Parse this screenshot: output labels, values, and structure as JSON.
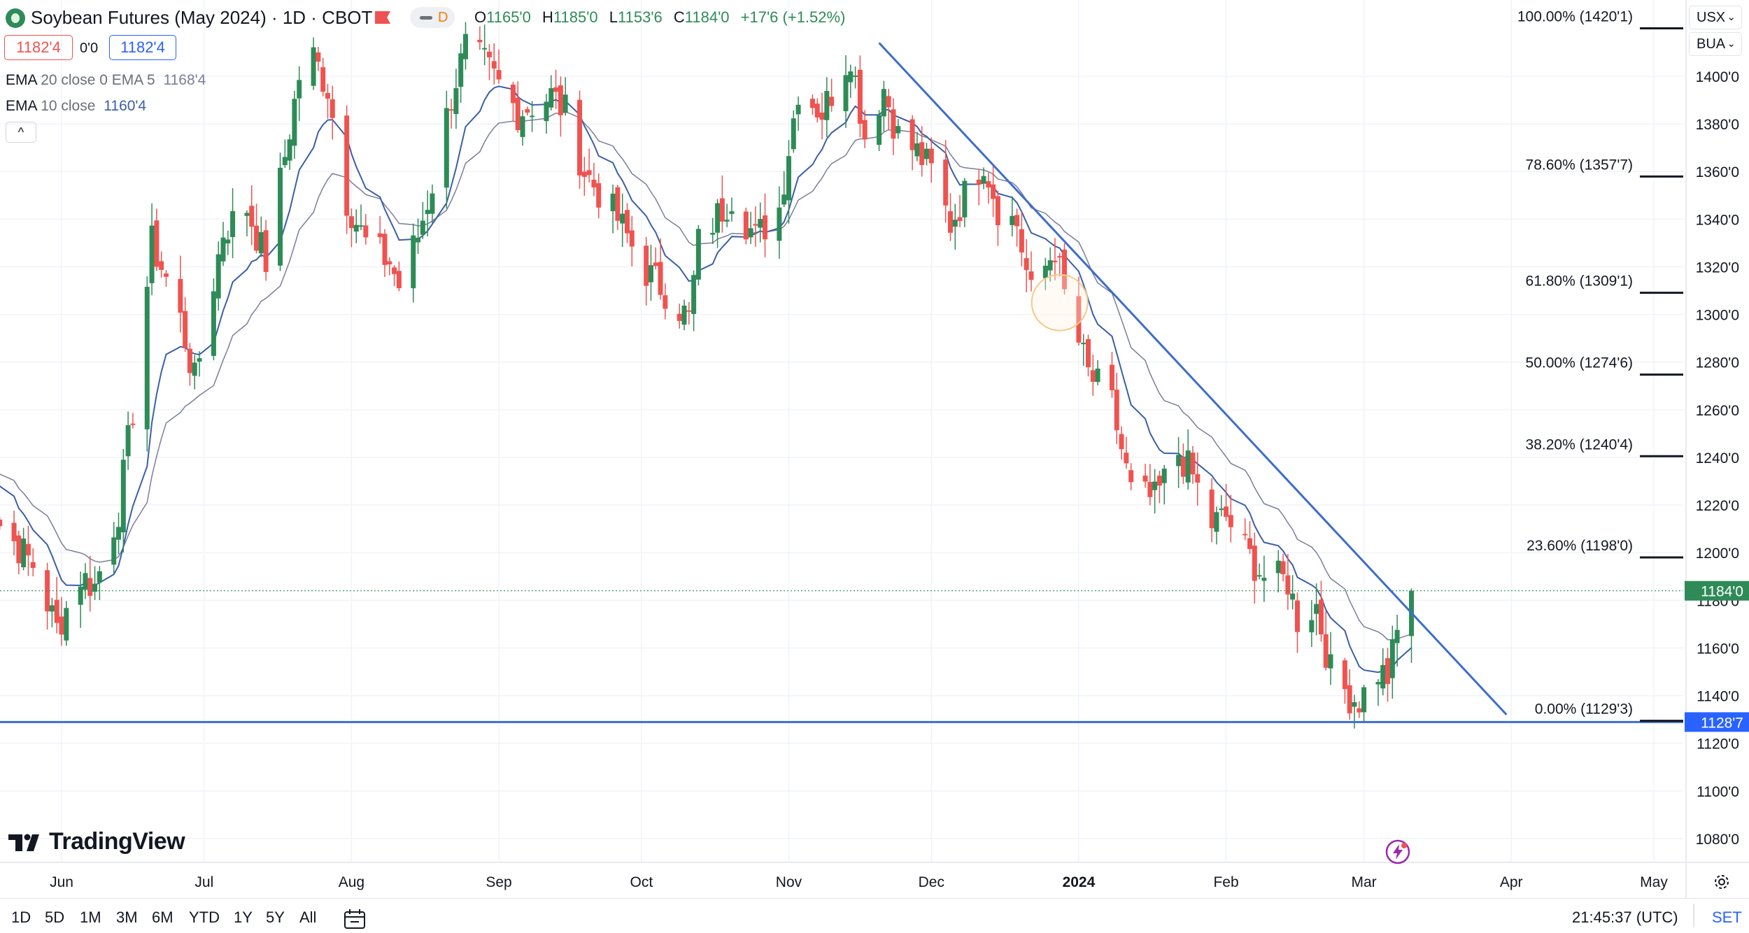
{
  "header": {
    "title": "Soybean Futures (May 2024) · 1D · CBOT",
    "interval_badge": "D",
    "ohlc": {
      "o_label": "O",
      "o": "1165'0",
      "h_label": "H",
      "h": "1185'0",
      "l_label": "L",
      "l": "1153'6",
      "c_label": "C",
      "c": "1184'0",
      "change": "+17'6 (+1.52%)"
    },
    "bid": "1182'4",
    "spread": "0'0",
    "ask": "1182'4"
  },
  "indicators": {
    "ema20": {
      "label": "EMA",
      "params": "20 close 0 EMA 5",
      "value": "1168'4"
    },
    "ema10": {
      "label": "EMA",
      "params": "10 close",
      "value": "1160'4"
    }
  },
  "collapse_glyph": "^",
  "top_right": {
    "currency": "USX",
    "unit": "BUA"
  },
  "brand": "TradingView",
  "bottom_bar": {
    "ranges": [
      "1D",
      "5D",
      "1M",
      "3M",
      "6M",
      "YTD",
      "1Y",
      "5Y",
      "All"
    ],
    "clock": "21:45:37 (UTC)",
    "session": "SET"
  },
  "icons": [
    "symbol-logo-icon",
    "flag-icon",
    "chevron-down-icon",
    "calendar-icon",
    "gear-icon",
    "lightning-icon"
  ],
  "colors": {
    "up": "#2e8b57",
    "down": "#ef5350",
    "ema_fast": "#3a5fa8",
    "ema_slow": "#7a7d9c",
    "trendline": "#3d6dcc",
    "accent": "#2962ff"
  },
  "chart_data": {
    "type": "candlestick",
    "y_range": [
      1070,
      1432
    ],
    "y_ticks": [
      "1080'0",
      "1100'0",
      "1120'0",
      "1140'0",
      "1160'0",
      "1180'0",
      "1200'0",
      "1220'0",
      "1240'0",
      "1260'0",
      "1280'0",
      "1300'0",
      "1320'0",
      "1340'0",
      "1360'0",
      "1380'0",
      "1400'0"
    ],
    "x_labels": [
      {
        "label": "Jun",
        "date": "2023-06-01"
      },
      {
        "label": "Jul",
        "date": "2023-07-01"
      },
      {
        "label": "Aug",
        "date": "2023-08-01"
      },
      {
        "label": "Sep",
        "date": "2023-09-01"
      },
      {
        "label": "Oct",
        "date": "2023-10-01"
      },
      {
        "label": "Nov",
        "date": "2023-11-01"
      },
      {
        "label": "Dec",
        "date": "2023-12-01"
      },
      {
        "label": "2024",
        "date": "2024-01-01",
        "bold": true
      },
      {
        "label": "Feb",
        "date": "2024-02-01"
      },
      {
        "label": "Mar",
        "date": "2024-03-01"
      },
      {
        "label": "Apr",
        "date": "2024-04-01"
      },
      {
        "label": "May",
        "date": "2024-05-01"
      }
    ],
    "last_price": {
      "label": "1184'0",
      "value": 1184
    },
    "support": {
      "label": "1128'7",
      "value": 1128.9
    },
    "fibonacci": [
      {
        "label": "100.00% (1420'1)",
        "value": 1420.1
      },
      {
        "label": "78.60% (1357'7)",
        "value": 1357.9
      },
      {
        "label": "61.80% (1309'1)",
        "value": 1309.1
      },
      {
        "label": "50.00% (1274'6)",
        "value": 1274.75
      },
      {
        "label": "38.20% (1240'4)",
        "value": 1240.5
      },
      {
        "label": "23.60% (1198'0)",
        "value": 1198.0
      },
      {
        "label": "0.00% (1129'3)",
        "value": 1129.4
      }
    ],
    "trendline": {
      "from": {
        "date": "2023-11-20",
        "value": 1414
      },
      "to": {
        "date": "2024-03-31",
        "value": 1132
      }
    },
    "anchors": [
      {
        "date": "2023-05-15",
        "value": 1240
      },
      {
        "date": "2023-05-19",
        "value": 1212
      },
      {
        "date": "2023-05-26",
        "value": 1195
      },
      {
        "date": "2023-05-31",
        "value": 1168
      },
      {
        "date": "2023-06-05",
        "value": 1190
      },
      {
        "date": "2023-06-08",
        "value": 1186
      },
      {
        "date": "2023-06-13",
        "value": 1218
      },
      {
        "date": "2023-06-16",
        "value": 1260
      },
      {
        "date": "2023-06-20",
        "value": 1330
      },
      {
        "date": "2023-06-23",
        "value": 1315
      },
      {
        "date": "2023-06-26",
        "value": 1298
      },
      {
        "date": "2023-06-29",
        "value": 1272
      },
      {
        "date": "2023-07-05",
        "value": 1335
      },
      {
        "date": "2023-07-10",
        "value": 1345
      },
      {
        "date": "2023-07-14",
        "value": 1322
      },
      {
        "date": "2023-07-21",
        "value": 1400
      },
      {
        "date": "2023-07-24",
        "value": 1408
      },
      {
        "date": "2023-07-27",
        "value": 1395
      },
      {
        "date": "2023-07-31",
        "value": 1348
      },
      {
        "date": "2023-08-04",
        "value": 1330
      },
      {
        "date": "2023-08-09",
        "value": 1322
      },
      {
        "date": "2023-08-11",
        "value": 1312
      },
      {
        "date": "2023-08-15",
        "value": 1333
      },
      {
        "date": "2023-08-18",
        "value": 1355
      },
      {
        "date": "2023-08-22",
        "value": 1392
      },
      {
        "date": "2023-08-25",
        "value": 1412
      },
      {
        "date": "2023-08-29",
        "value": 1405
      },
      {
        "date": "2023-09-05",
        "value": 1385
      },
      {
        "date": "2023-09-12",
        "value": 1392
      },
      {
        "date": "2023-09-15",
        "value": 1385
      },
      {
        "date": "2023-09-19",
        "value": 1360
      },
      {
        "date": "2023-09-26",
        "value": 1340
      },
      {
        "date": "2023-10-02",
        "value": 1318
      },
      {
        "date": "2023-10-06",
        "value": 1310
      },
      {
        "date": "2023-10-11",
        "value": 1298
      },
      {
        "date": "2023-10-13",
        "value": 1330
      },
      {
        "date": "2023-10-20",
        "value": 1350
      },
      {
        "date": "2023-10-25",
        "value": 1332
      },
      {
        "date": "2023-10-30",
        "value": 1345
      },
      {
        "date": "2023-11-03",
        "value": 1395
      },
      {
        "date": "2023-11-08",
        "value": 1385
      },
      {
        "date": "2023-11-14",
        "value": 1410
      },
      {
        "date": "2023-11-17",
        "value": 1375
      },
      {
        "date": "2023-11-21",
        "value": 1395
      },
      {
        "date": "2023-11-24",
        "value": 1375
      },
      {
        "date": "2023-11-28",
        "value": 1368
      },
      {
        "date": "2023-12-01",
        "value": 1360
      },
      {
        "date": "2023-12-05",
        "value": 1338
      },
      {
        "date": "2023-12-08",
        "value": 1350
      },
      {
        "date": "2023-12-12",
        "value": 1365
      },
      {
        "date": "2023-12-15",
        "value": 1345
      },
      {
        "date": "2023-12-19",
        "value": 1338
      },
      {
        "date": "2023-12-22",
        "value": 1308
      },
      {
        "date": "2023-12-27",
        "value": 1328
      },
      {
        "date": "2023-12-29",
        "value": 1308
      },
      {
        "date": "2024-01-03",
        "value": 1275
      },
      {
        "date": "2024-01-08",
        "value": 1262
      },
      {
        "date": "2024-01-12",
        "value": 1225
      },
      {
        "date": "2024-01-17",
        "value": 1222
      },
      {
        "date": "2024-01-22",
        "value": 1242
      },
      {
        "date": "2024-01-25",
        "value": 1232
      },
      {
        "date": "2024-01-29",
        "value": 1212
      },
      {
        "date": "2024-02-01",
        "value": 1215
      },
      {
        "date": "2024-02-06",
        "value": 1198
      },
      {
        "date": "2024-02-09",
        "value": 1190
      },
      {
        "date": "2024-02-14",
        "value": 1188
      },
      {
        "date": "2024-02-16",
        "value": 1172
      },
      {
        "date": "2024-02-20",
        "value": 1178
      },
      {
        "date": "2024-02-23",
        "value": 1150
      },
      {
        "date": "2024-02-27",
        "value": 1140
      },
      {
        "date": "2024-02-29",
        "value": 1138
      },
      {
        "date": "2024-03-04",
        "value": 1150
      },
      {
        "date": "2024-03-06",
        "value": 1148
      },
      {
        "date": "2024-03-08",
        "value": 1166
      },
      {
        "date": "2024-03-11",
        "value": 1184
      }
    ]
  }
}
